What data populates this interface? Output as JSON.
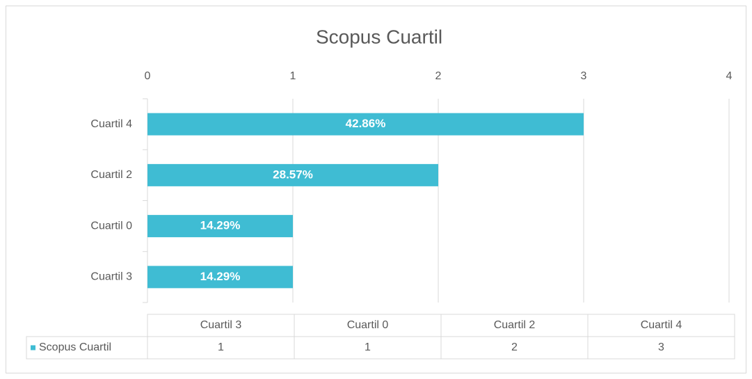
{
  "chart_data": {
    "type": "bar",
    "orientation": "horizontal",
    "title": "Scopus Cuartil",
    "categories": [
      "Cuartil 3",
      "Cuartil 0",
      "Cuartil 2",
      "Cuartil 4"
    ],
    "series": [
      {
        "name": "Scopus Cuartil",
        "color": "#3fbcd3",
        "values": [
          1,
          1,
          2,
          3
        ],
        "data_labels": [
          "14.29%",
          "14.29%",
          "28.57%",
          "42.86%"
        ]
      }
    ],
    "xlim": [
      0,
      4
    ],
    "xticks": [
      0,
      1,
      2,
      3,
      4
    ],
    "grid": true,
    "data_table": true
  }
}
